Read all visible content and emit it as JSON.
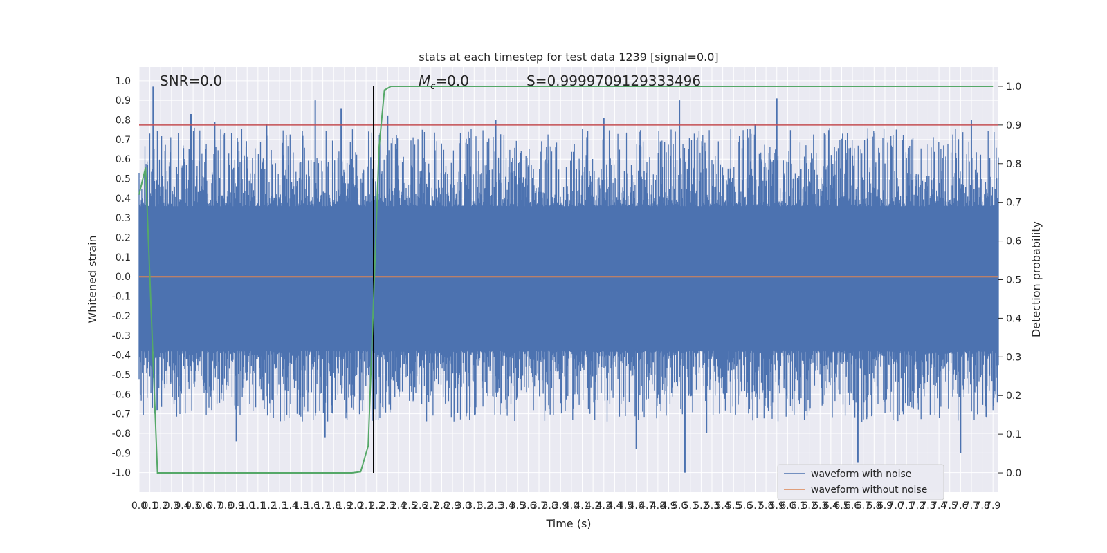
{
  "chart_data": {
    "type": "line",
    "title": "stats at each timestep for test data 1239 [signal=0.0]",
    "xlabel": "Time (s)",
    "ylabel": "Whitened strain",
    "ylabel_right": "Detection probability",
    "xlim": [
      0.0,
      7.95
    ],
    "ylim": [
      -1.1,
      1.07
    ],
    "ylim_right": [
      -0.05,
      1.05
    ],
    "x_ticks": [
      "0.0",
      "0.1",
      "0.2",
      "0.3",
      "0.4",
      "0.5",
      "0.6",
      "0.7",
      "0.8",
      "0.9",
      "1.0",
      "1.1",
      "1.2",
      "1.3",
      "1.4",
      "1.5",
      "1.6",
      "1.7",
      "1.8",
      "1.9",
      "2.0",
      "2.1",
      "2.2",
      "2.3",
      "2.4",
      "2.5",
      "2.6",
      "2.7",
      "2.8",
      "2.9",
      "3.0",
      "3.1",
      "3.2",
      "3.3",
      "3.4",
      "3.5",
      "3.6",
      "3.7",
      "3.8",
      "3.9",
      "4.0",
      "4.1",
      "4.2",
      "4.3",
      "4.4",
      "4.5",
      "4.6",
      "4.7",
      "4.8",
      "4.9",
      "5.0",
      "5.1",
      "5.2",
      "5.3",
      "5.4",
      "5.5",
      "5.6",
      "5.7",
      "5.8",
      "5.9",
      "6.0",
      "6.1",
      "6.2",
      "6.3",
      "6.4",
      "6.5",
      "6.6",
      "6.7",
      "6.8",
      "6.9",
      "7.0",
      "7.1",
      "7.2",
      "7.3",
      "7.4",
      "7.5",
      "7.6",
      "7.7",
      "7.8",
      "7.9"
    ],
    "y_ticks": [
      "1.0",
      "0.9",
      "0.8",
      "0.7",
      "0.6",
      "0.5",
      "0.4",
      "0.3",
      "0.2",
      "0.1",
      "0.0",
      "-0.1",
      "-0.2",
      "-0.3",
      "-0.4",
      "-0.5",
      "-0.6",
      "-0.7",
      "-0.8",
      "-0.9",
      "-1.0"
    ],
    "y_ticks_right": [
      "1.0",
      "0.9",
      "0.8",
      "0.7",
      "0.6",
      "0.5",
      "0.4",
      "0.3",
      "0.2",
      "0.1",
      "0.0"
    ],
    "annotations": {
      "snr": "SNR=0.0",
      "mc_symbol": "M",
      "mc_sub": "c",
      "mc_value": "=0.0",
      "s": "S=0.9999709129333496"
    },
    "merger_time": 2.17,
    "threshold_probability": 0.9,
    "series": [
      {
        "name": "waveform with noise",
        "color": "#4c72b0",
        "peaks": [
          [
            0.13,
            0.97
          ],
          [
            0.48,
            0.83
          ],
          [
            0.7,
            0.79
          ],
          [
            1.18,
            0.78
          ],
          [
            1.63,
            0.9
          ],
          [
            1.87,
            0.86
          ],
          [
            2.3,
            0.82
          ],
          [
            3.3,
            0.8
          ],
          [
            4.3,
            0.81
          ],
          [
            5.0,
            0.9
          ],
          [
            5.7,
            0.78
          ],
          [
            5.9,
            0.91
          ],
          [
            7.7,
            0.8
          ]
        ],
        "troughs": [
          [
            0.9,
            -0.84
          ],
          [
            1.72,
            -0.82
          ],
          [
            4.6,
            -0.88
          ],
          [
            5.05,
            -1.0
          ],
          [
            5.25,
            -0.8
          ],
          [
            6.65,
            -0.95
          ],
          [
            7.6,
            -0.9
          ]
        ]
      },
      {
        "name": "waveform without noise",
        "color": "#dd8452",
        "values": "0.0"
      },
      {
        "color": "#55a868",
        "x": [
          0.0,
          0.06,
          0.17,
          0.2,
          1.97,
          2.05,
          2.12,
          2.17,
          2.22,
          2.27,
          2.33,
          7.9
        ],
        "y": [
          0.72,
          0.79,
          0.0,
          0.0,
          0.0,
          0.003,
          0.07,
          0.45,
          0.84,
          0.99,
          1.0,
          1.0
        ]
      }
    ],
    "legend": {
      "placement": "lower-right",
      "entries": [
        "waveform with noise",
        "waveform without noise"
      ]
    },
    "grid": true,
    "colors": {
      "background": "#eaeaf2",
      "grid": "#ffffff",
      "threshold": "#c44e52",
      "merger_line": "#000000"
    }
  }
}
